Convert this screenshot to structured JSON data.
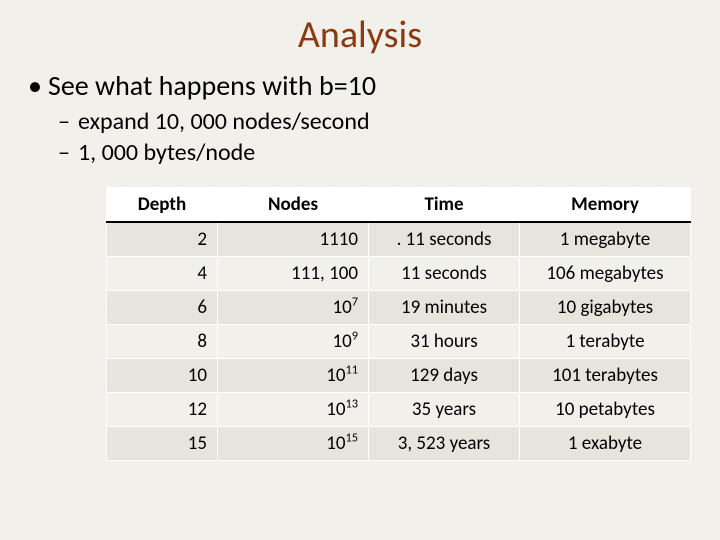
{
  "title": "Analysis",
  "bullets": {
    "main": "See what happens with b=10",
    "sub1": "expand 10, 000 nodes/second",
    "sub2": "1, 000 bytes/node"
  },
  "table": {
    "headers": {
      "depth": "Depth",
      "nodes": "Nodes",
      "time": "Time",
      "memory": "Memory"
    },
    "rows": [
      {
        "depth": "2",
        "nodes_plain": "1110",
        "time": ". 11 seconds",
        "memory": "1 megabyte"
      },
      {
        "depth": "4",
        "nodes_plain": "111, 100",
        "time": "11 seconds",
        "memory": "106 megabytes"
      },
      {
        "depth": "6",
        "nodes_base": "10",
        "nodes_exp": "7",
        "time": "19 minutes",
        "memory": "10 gigabytes"
      },
      {
        "depth": "8",
        "nodes_base": "10",
        "nodes_exp": "9",
        "time": "31 hours",
        "memory": "1 terabyte"
      },
      {
        "depth": "10",
        "nodes_base": "10",
        "nodes_exp": "11",
        "time": "129 days",
        "memory": "101 terabytes"
      },
      {
        "depth": "12",
        "nodes_base": "10",
        "nodes_exp": "13",
        "time": "35 years",
        "memory": "10 petabytes"
      },
      {
        "depth": "15",
        "nodes_base": "10",
        "nodes_exp": "15",
        "time": "3, 523 years",
        "memory": "1 exabyte"
      }
    ]
  },
  "style": {
    "title_color": "#8a3a12",
    "title_fontsize": 38,
    "bullet1_fontsize": 28,
    "bullet2_fontsize": 24,
    "table_fontsize": 19,
    "row_odd_bg": "#e6e4dc",
    "row_even_bg": "#f2f0ea",
    "header_bg": "#ffffff",
    "header_border_bottom": "#000000",
    "cell_border": "#ffffff",
    "background": "#f2f0ea"
  }
}
